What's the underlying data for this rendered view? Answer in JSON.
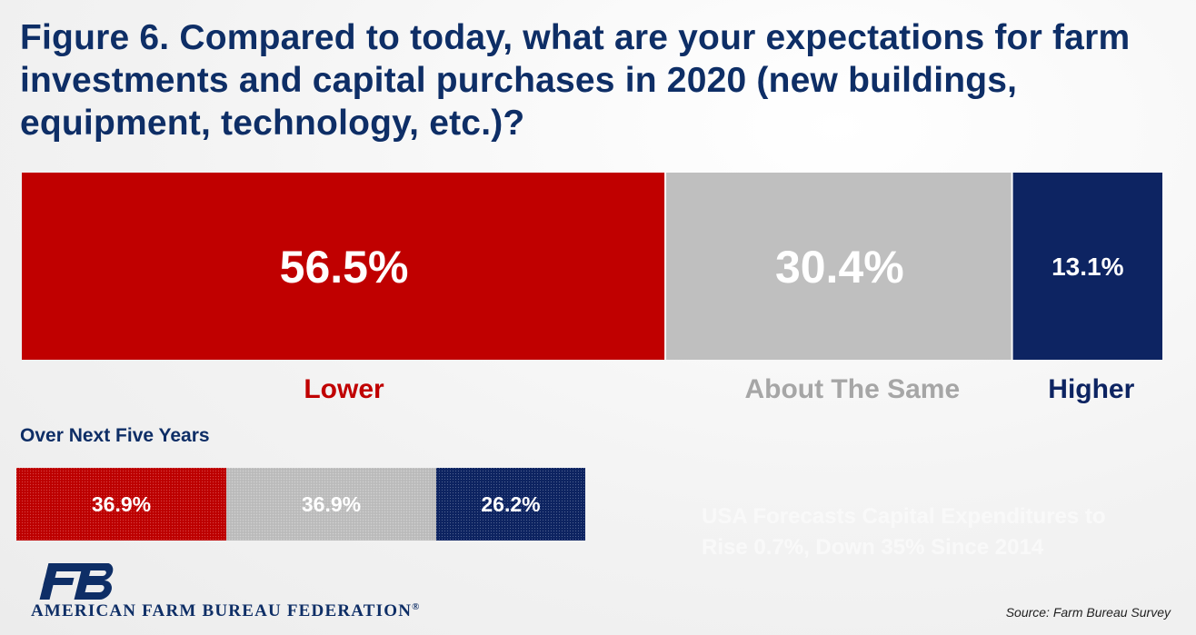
{
  "title": "Figure 6. Compared to today, what are your expectations for farm investments and capital purchases in 2020 (new buildings, equipment, technology, etc.)?",
  "subtitle": "Over Next Five Years",
  "faint_note": "USA Forecasts Capital Expenditures to Rise 0.7%, Down 35% Since 2014",
  "source": "Source: Farm Bureau Survey",
  "logo": {
    "name": "AMERICAN FARM BUREAU FEDERATION",
    "mark": "FB",
    "registered": "®"
  },
  "colors": {
    "lower": "#c00000",
    "same": "#bfbfbf",
    "higher": "#0d2462",
    "title": "#0e2e66"
  },
  "chart_data": [
    {
      "type": "bar",
      "orientation": "horizontal-stacked",
      "title": "Figure 6. Compared to today, what are your expectations for farm investments and capital purchases in 2020 (new buildings, equipment, technology, etc.)?",
      "series": [
        {
          "name": "Lower",
          "value": 56.5,
          "label": "56.5%",
          "color": "#c00000"
        },
        {
          "name": "About The Same",
          "value": 30.4,
          "label": "30.4%",
          "color": "#bfbfbf"
        },
        {
          "name": "Higher",
          "value": 13.1,
          "label": "13.1%",
          "color": "#0d2462"
        }
      ],
      "xlim": [
        0,
        100
      ]
    },
    {
      "type": "bar",
      "orientation": "horizontal-stacked",
      "title": "Over Next Five Years",
      "series": [
        {
          "name": "Lower",
          "value": 36.9,
          "label": "36.9%",
          "color": "#c00000"
        },
        {
          "name": "About The Same",
          "value": 36.9,
          "label": "36.9%",
          "color": "#bfbfbf"
        },
        {
          "name": "Higher",
          "value": 26.2,
          "label": "26.2%",
          "color": "#0d2462"
        }
      ],
      "xlim": [
        0,
        100
      ]
    }
  ]
}
